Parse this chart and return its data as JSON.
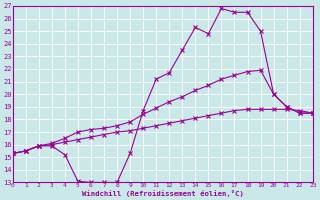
{
  "xlabel": "Windchill (Refroidissement éolien,°C)",
  "background_color": "#cbe8e8",
  "grid_color": "#ffffff",
  "line_color": "#990099",
  "xmin": 0,
  "xmax": 23,
  "ymin": 13,
  "ymax": 27,
  "line1_x": [
    0,
    1,
    2,
    3,
    4,
    5,
    6,
    7,
    8,
    9,
    10,
    11,
    12,
    13,
    14,
    15,
    16,
    17,
    18,
    19,
    20,
    21,
    22,
    23
  ],
  "line1_y": [
    15.3,
    15.5,
    15.9,
    15.9,
    15.2,
    13.1,
    13.0,
    13.0,
    13.0,
    15.3,
    18.7,
    21.2,
    21.7,
    23.5,
    25.3,
    24.8,
    26.8,
    26.5,
    26.5,
    25.0,
    20.0,
    19.0,
    18.5,
    18.5
  ],
  "line2_x": [
    0,
    1,
    2,
    3,
    4,
    5,
    6,
    7,
    8,
    9,
    10,
    11,
    12,
    13,
    14,
    15,
    16,
    17,
    18,
    19,
    20,
    21,
    22,
    23
  ],
  "line2_y": [
    15.3,
    15.5,
    15.9,
    16.1,
    16.5,
    17.0,
    17.2,
    17.3,
    17.5,
    17.8,
    18.4,
    18.9,
    19.4,
    19.8,
    20.3,
    20.7,
    21.2,
    21.5,
    21.8,
    21.9,
    20.0,
    19.0,
    18.5,
    18.5
  ],
  "line3_x": [
    0,
    1,
    2,
    3,
    4,
    5,
    6,
    7,
    8,
    9,
    10,
    11,
    12,
    13,
    14,
    15,
    16,
    17,
    18,
    19,
    20,
    21,
    22,
    23
  ],
  "line3_y": [
    15.3,
    15.5,
    15.9,
    16.0,
    16.2,
    16.4,
    16.6,
    16.8,
    17.0,
    17.1,
    17.3,
    17.5,
    17.7,
    17.9,
    18.1,
    18.3,
    18.5,
    18.7,
    18.8,
    18.8,
    18.8,
    18.8,
    18.7,
    18.5
  ]
}
